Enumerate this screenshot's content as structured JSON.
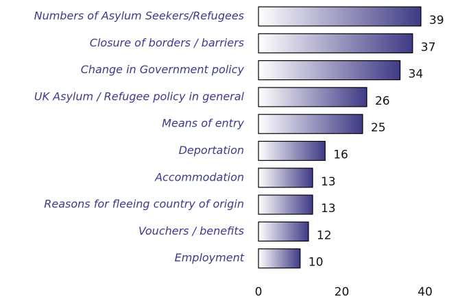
{
  "chart_data": {
    "type": "barh",
    "categories": [
      "Numbers of Asylum Seekers/Refugees",
      "Closure of borders / barriers",
      "Change in Government policy",
      "UK Asylum / Refugee policy in general",
      "Means of entry",
      "Deportation",
      "Accommodation",
      "Reasons for fleeing country of origin",
      "Vouchers / benefits",
      "Employment"
    ],
    "values": [
      39,
      37,
      34,
      26,
      25,
      16,
      13,
      13,
      12,
      10
    ],
    "color": "#3f3a85",
    "xlim": [
      0,
      40
    ],
    "xticks": [
      0,
      20,
      40
    ]
  }
}
